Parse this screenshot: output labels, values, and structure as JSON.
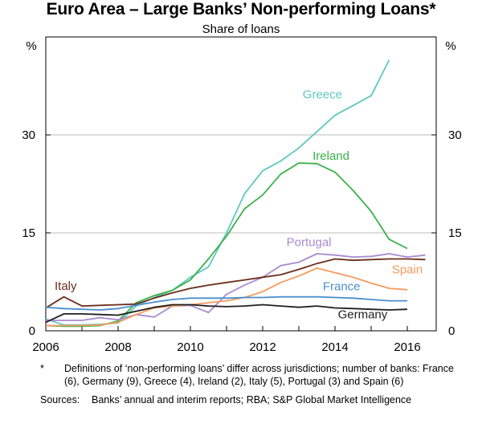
{
  "title": "Euro Area – Large Banks’ Non-performing Loans*",
  "subtitle": "Share of loans",
  "unit_left": "%",
  "unit_right": "%",
  "footnote_mark": "*",
  "footnote_text": "Definitions of ‘non-performing loans’ differ across jurisdictions; number of banks: France (6), Germany (9), Greece (4), Ireland (2), Italy (5), Portugal (3) and Spain (6)",
  "sources_label": "Sources:",
  "sources_text": "Banks’ annual and interim reports; RBA; S&P Global Market Intelligence",
  "chart_data": {
    "type": "line",
    "x_label": "",
    "y_label": "%",
    "xlim": [
      2006,
      2016.8
    ],
    "ylim": [
      0,
      45
    ],
    "x_ticks": [
      2006,
      2008,
      2010,
      2012,
      2014,
      2016
    ],
    "y_ticks": [
      0,
      15,
      30
    ],
    "grid": true,
    "series": [
      {
        "name": "Greece",
        "color": "#5fc8c0",
        "label_pos": [
          2014.2,
          35.6
        ],
        "anchor": "end",
        "points": [
          [
            2006,
            1.8
          ],
          [
            2006.5,
            0.9
          ],
          [
            2007,
            0.9
          ],
          [
            2007.5,
            1.0
          ],
          [
            2008,
            1.2
          ],
          [
            2008.5,
            3.8
          ],
          [
            2009,
            5.1
          ],
          [
            2009.5,
            6.2
          ],
          [
            2010,
            8.2
          ],
          [
            2010.5,
            9.8
          ],
          [
            2011,
            15.0
          ],
          [
            2011.5,
            21.0
          ],
          [
            2012,
            24.5
          ],
          [
            2012.5,
            26.0
          ],
          [
            2013,
            28.0
          ],
          [
            2013.5,
            30.5
          ],
          [
            2014,
            33.0
          ],
          [
            2014.5,
            34.5
          ],
          [
            2015,
            36.0
          ],
          [
            2015.5,
            41.5
          ]
        ]
      },
      {
        "name": "Ireland",
        "color": "#3bb04a",
        "label_pos": [
          2014.4,
          26.2
        ],
        "anchor": "end",
        "points": [
          [
            2006,
            0.8
          ],
          [
            2006.5,
            0.7
          ],
          [
            2007,
            0.7
          ],
          [
            2007.5,
            0.8
          ],
          [
            2008,
            1.5
          ],
          [
            2008.5,
            4.3
          ],
          [
            2009,
            5.4
          ],
          [
            2009.5,
            6.2
          ],
          [
            2010,
            7.8
          ],
          [
            2010.5,
            11.0
          ],
          [
            2011,
            14.5
          ],
          [
            2011.5,
            18.7
          ],
          [
            2012,
            20.8
          ],
          [
            2012.5,
            24.0
          ],
          [
            2013,
            25.7
          ],
          [
            2013.5,
            25.6
          ],
          [
            2014,
            24.3
          ],
          [
            2014.5,
            21.5
          ],
          [
            2015,
            18.3
          ],
          [
            2015.5,
            14.0
          ],
          [
            2016,
            12.6
          ]
        ]
      },
      {
        "name": "Portugal",
        "color": "#a98ad0",
        "label_pos": [
          2013.9,
          13.0
        ],
        "anchor": "end",
        "points": [
          [
            2006,
            1.6
          ],
          [
            2006.5,
            1.6
          ],
          [
            2007,
            1.6
          ],
          [
            2007.5,
            2.0
          ],
          [
            2008,
            1.7
          ],
          [
            2008.5,
            2.5
          ],
          [
            2009,
            2.1
          ],
          [
            2009.5,
            3.8
          ],
          [
            2010,
            3.9
          ],
          [
            2010.5,
            2.8
          ],
          [
            2011,
            5.6
          ],
          [
            2011.5,
            7.0
          ],
          [
            2012,
            8.2
          ],
          [
            2012.5,
            10.0
          ],
          [
            2013,
            10.5
          ],
          [
            2013.5,
            11.8
          ],
          [
            2014,
            11.6
          ],
          [
            2014.5,
            11.3
          ],
          [
            2015,
            11.4
          ],
          [
            2015.5,
            11.8
          ],
          [
            2016,
            11.3
          ],
          [
            2016.5,
            11.6
          ]
        ]
      },
      {
        "name": "Italy",
        "color": "#6b2e1a",
        "label_pos": [
          2006.55,
          6.3
        ],
        "anchor": "middle",
        "points": [
          [
            2006,
            3.5
          ],
          [
            2006.5,
            5.2
          ],
          [
            2007,
            3.8
          ],
          [
            2007.5,
            3.9
          ],
          [
            2008,
            4.0
          ],
          [
            2008.5,
            4.1
          ],
          [
            2009,
            5.0
          ],
          [
            2009.5,
            5.8
          ],
          [
            2010,
            6.5
          ],
          [
            2010.5,
            7.0
          ],
          [
            2011,
            7.4
          ],
          [
            2011.5,
            7.8
          ],
          [
            2012,
            8.2
          ],
          [
            2012.5,
            8.6
          ],
          [
            2013,
            9.4
          ],
          [
            2013.5,
            10.3
          ],
          [
            2014,
            11.0
          ],
          [
            2014.5,
            10.8
          ],
          [
            2015,
            10.9
          ],
          [
            2015.5,
            11.0
          ],
          [
            2016,
            11.0
          ],
          [
            2016.5,
            10.9
          ]
        ]
      },
      {
        "name": "Spain",
        "color": "#f59a5c",
        "label_pos": [
          2016.0,
          8.8
        ],
        "anchor": "middle",
        "points": [
          [
            2006,
            0.8
          ],
          [
            2006.5,
            0.8
          ],
          [
            2007,
            0.8
          ],
          [
            2007.5,
            0.9
          ],
          [
            2008,
            1.3
          ],
          [
            2008.5,
            2.5
          ],
          [
            2009,
            3.5
          ],
          [
            2009.5,
            3.8
          ],
          [
            2010,
            4.0
          ],
          [
            2010.5,
            4.3
          ],
          [
            2011,
            4.6
          ],
          [
            2011.5,
            5.1
          ],
          [
            2012,
            6.0
          ],
          [
            2012.5,
            7.4
          ],
          [
            2013,
            8.4
          ],
          [
            2013.5,
            9.6
          ],
          [
            2014,
            8.9
          ],
          [
            2014.5,
            8.2
          ],
          [
            2015,
            7.3
          ],
          [
            2015.5,
            6.5
          ],
          [
            2016,
            6.3
          ]
        ]
      },
      {
        "name": "France",
        "color": "#4a8fcf",
        "label_pos": [
          2014.7,
          6.2
        ],
        "anchor": "end",
        "points": [
          [
            2006,
            3.6
          ],
          [
            2006.5,
            3.4
          ],
          [
            2007,
            3.3
          ],
          [
            2007.5,
            3.2
          ],
          [
            2008,
            3.4
          ],
          [
            2008.5,
            3.9
          ],
          [
            2009,
            4.4
          ],
          [
            2009.5,
            4.8
          ],
          [
            2010,
            5.0
          ],
          [
            2010.5,
            5.0
          ],
          [
            2011,
            5.0
          ],
          [
            2011.5,
            5.1
          ],
          [
            2012,
            5.1
          ],
          [
            2012.5,
            5.2
          ],
          [
            2013,
            5.2
          ],
          [
            2013.5,
            5.2
          ],
          [
            2014,
            5.1
          ],
          [
            2014.5,
            5.0
          ],
          [
            2015,
            4.8
          ],
          [
            2015.5,
            4.6
          ],
          [
            2016,
            4.6
          ]
        ]
      },
      {
        "name": "Germany",
        "color": "#1f1f1f",
        "label_pos": [
          2015.45,
          1.9
        ],
        "anchor": "end",
        "points": [
          [
            2006,
            1.3
          ],
          [
            2006.5,
            2.6
          ],
          [
            2007,
            2.6
          ],
          [
            2007.5,
            2.5
          ],
          [
            2008,
            2.4
          ],
          [
            2008.5,
            3.0
          ],
          [
            2009,
            3.6
          ],
          [
            2009.5,
            4.0
          ],
          [
            2010,
            4.0
          ],
          [
            2010.5,
            3.8
          ],
          [
            2011,
            3.7
          ],
          [
            2011.5,
            3.8
          ],
          [
            2012,
            4.0
          ],
          [
            2012.5,
            3.8
          ],
          [
            2013,
            3.6
          ],
          [
            2013.5,
            3.8
          ],
          [
            2014,
            3.5
          ],
          [
            2014.5,
            3.4
          ],
          [
            2015,
            3.3
          ],
          [
            2015.5,
            3.2
          ],
          [
            2016,
            3.3
          ]
        ]
      }
    ]
  }
}
